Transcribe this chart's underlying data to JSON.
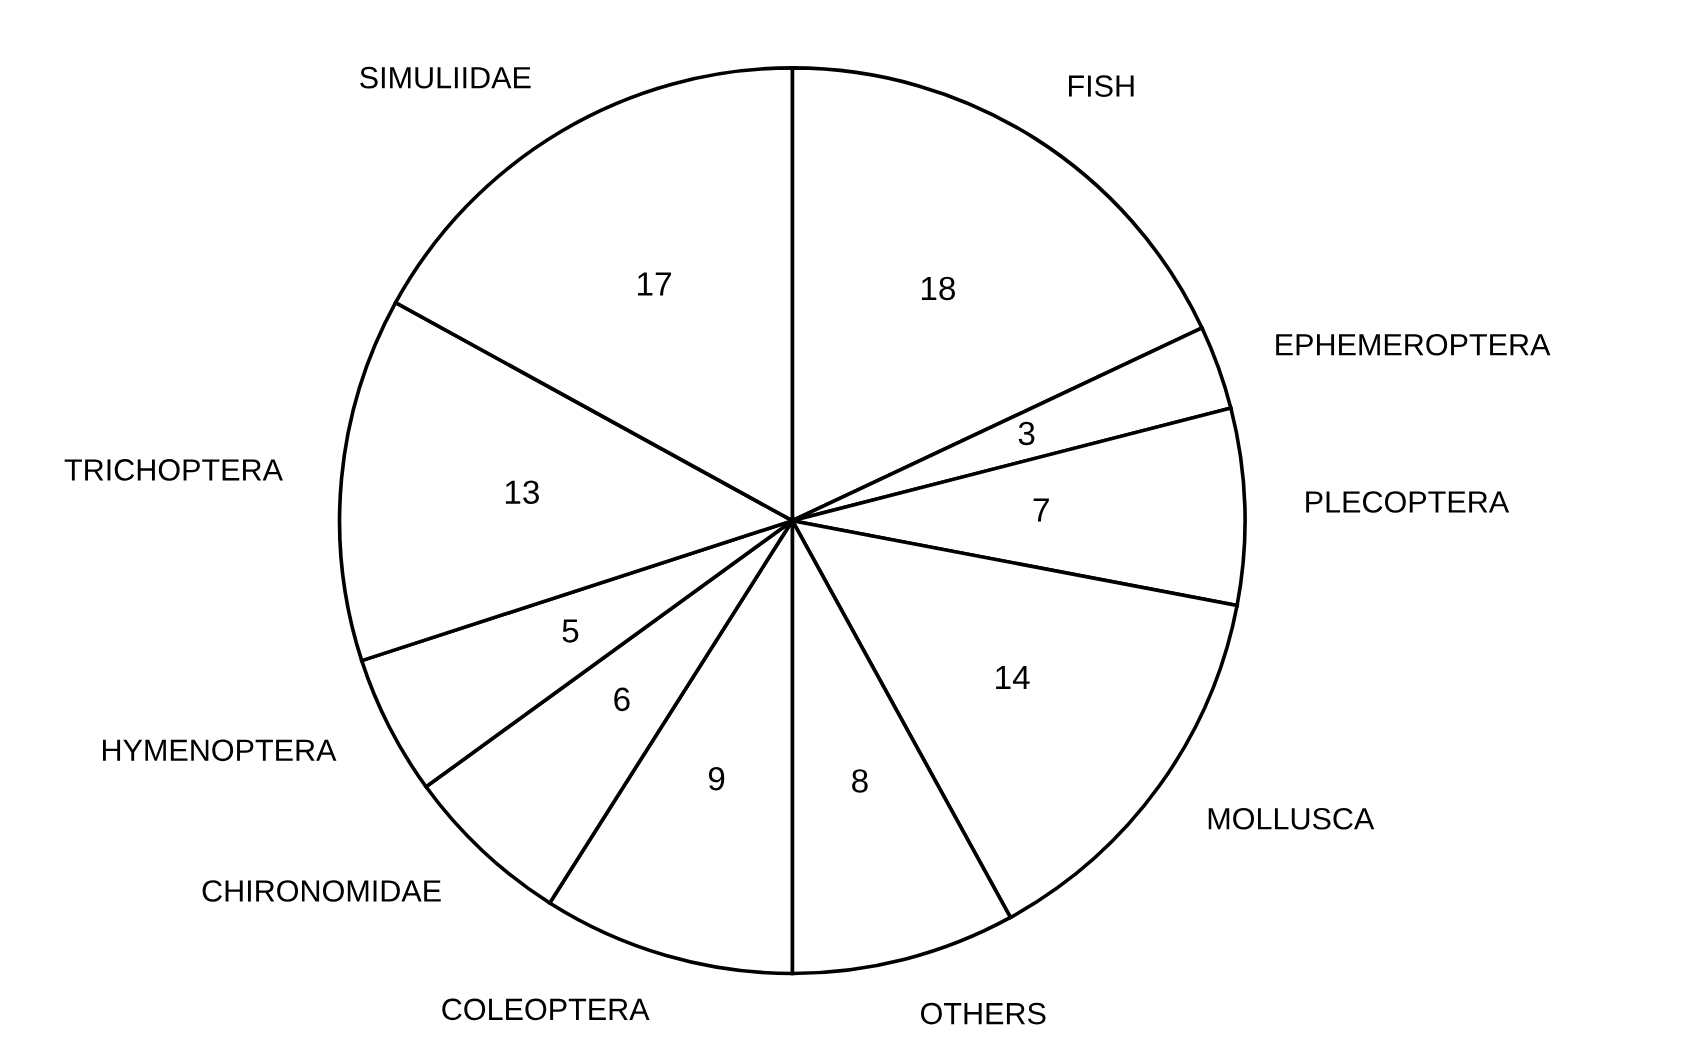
{
  "chart_data": {
    "type": "pie",
    "categories": [
      "FISH",
      "EPHEMEROPTERA",
      "PLECOPTERA",
      "MOLLUSCA",
      "OTHERS",
      "COLEOPTERA",
      "CHIRONOMIDAE",
      "HYMENOPTERA",
      "TRICHOPTERA",
      "SIMULIIDAE"
    ],
    "values": [
      18,
      3,
      7,
      14,
      8,
      9,
      6,
      5,
      13,
      17
    ],
    "colors": [
      "#ffffff",
      "#ffffff",
      "#ffffff",
      "#ffffff",
      "#ffffff",
      "#ffffff",
      "#ffffff",
      "#ffffff",
      "#ffffff",
      "#ffffff"
    ],
    "data_labels": true
  }
}
